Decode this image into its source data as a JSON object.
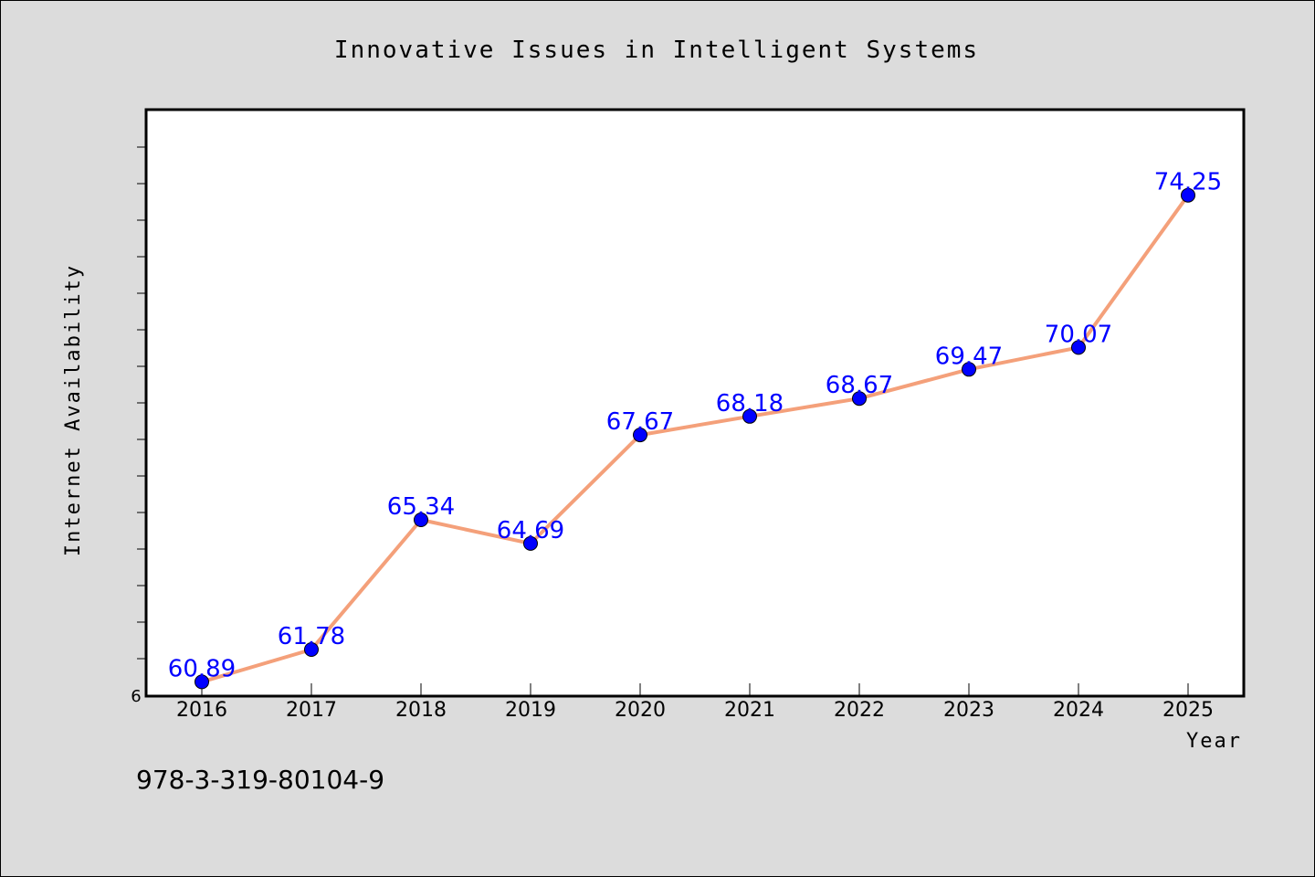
{
  "chart_data": {
    "type": "line",
    "title": "Innovative Issues in Intelligent Systems",
    "xlabel": "Year",
    "ylabel": "Internet Availability",
    "x": [
      "2016",
      "2017",
      "2018",
      "2019",
      "2020",
      "2021",
      "2022",
      "2023",
      "2024",
      "2025"
    ],
    "series": [
      {
        "values": [
          60.89,
          61.78,
          65.34,
          64.69,
          67.67,
          68.18,
          68.67,
          69.47,
          70.07,
          74.25
        ],
        "line_color": "#f4a07a",
        "marker_color": "#0000ff",
        "label_color": "#0000ff"
      }
    ],
    "data_labels": [
      "60.89",
      "61.78",
      "65.34",
      "64.69",
      "67.67",
      "68.18",
      "68.67",
      "69.47",
      "70.07",
      "74.25"
    ],
    "yticks_labeled": [
      "6"
    ],
    "ylim": [
      60.5,
      76.6
    ],
    "grid": false,
    "background": "#dcdcdc",
    "plot_background": "#ffffff"
  },
  "footer": {
    "isbn": "978-3-319-80104-9"
  }
}
